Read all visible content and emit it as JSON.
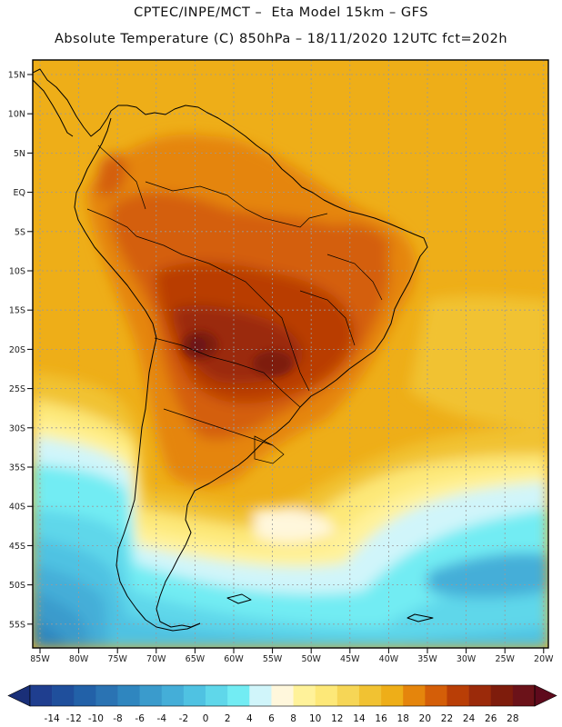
{
  "title": {
    "line1": "CPTEC/INPE/MCT –  Eta Model 15km – GFS",
    "line2": "Absolute Temperature (C) 850hPa – 18/11/2020 12UTC fct=202h"
  },
  "map": {
    "lat_labels": [
      "15N",
      "10N",
      "5N",
      "EQ",
      "5S",
      "10S",
      "15S",
      "20S",
      "25S",
      "30S",
      "35S",
      "40S",
      "45S",
      "50S",
      "55S"
    ],
    "lon_labels": [
      "85W",
      "80W",
      "75W",
      "70W",
      "65W",
      "60W",
      "55W",
      "50W",
      "45W",
      "40W",
      "35W",
      "30W",
      "25W",
      "20W"
    ]
  },
  "colorbar": {
    "ticks": [
      "-14",
      "-12",
      "-10",
      "-8",
      "-6",
      "-4",
      "-2",
      "0",
      "2",
      "4",
      "6",
      "8",
      "10",
      "12",
      "14",
      "16",
      "18",
      "20",
      "22",
      "24",
      "26",
      "28"
    ],
    "colors": [
      "#1f3e8f",
      "#1f4f9c",
      "#2261a8",
      "#2a73b3",
      "#2f86bf",
      "#3a9bcc",
      "#44aed8",
      "#4fc2e2",
      "#5fd7ea",
      "#72ecf3",
      "#d0f5fa",
      "#fff7dc",
      "#fff29a",
      "#fde878",
      "#f6d656",
      "#f1c232",
      "#eeae18",
      "#e5850c",
      "#d45e08",
      "#b93e06",
      "#9b2a0a",
      "#7e1c0c",
      "#6b1219"
    ],
    "left_arrow_color": "#1a2f78",
    "right_arrow_color": "#5e0a1c"
  }
}
